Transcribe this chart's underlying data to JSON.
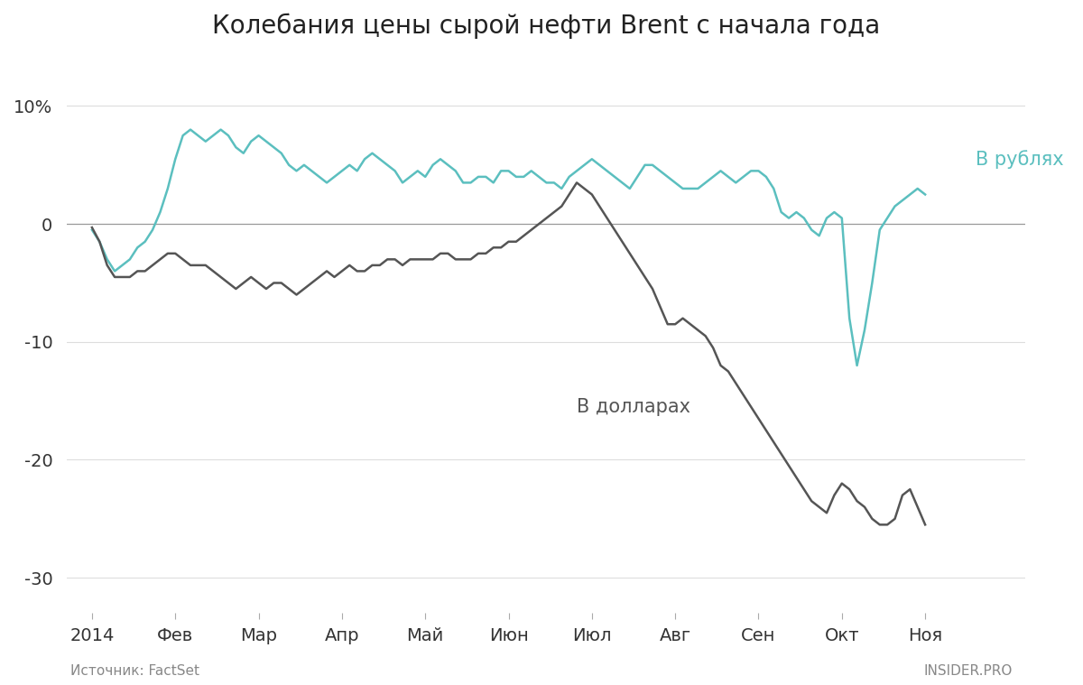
{
  "title": "Колебания цены сырой нефти Brent с начала года",
  "title_fontsize": 20,
  "xlabel_months": [
    "2014",
    "Фев",
    "Мар",
    "Апр",
    "Май",
    "Июн",
    "Июл",
    "Авг",
    "Сен",
    "Окт",
    "Ноя"
  ],
  "ylim": [
    -33,
    14
  ],
  "source_text": "Источник: FactSet",
  "brand_text": "INSIDER.PRO",
  "label_rubles": "В рублях",
  "label_dollars": "В долларах",
  "color_rubles": "#5bbfbf",
  "color_dollars": "#555555",
  "background_color": "#ffffff",
  "ruble_x": [
    0,
    1,
    2,
    3,
    4,
    5,
    6,
    7,
    8,
    9,
    10,
    11,
    12,
    13,
    14,
    15,
    16,
    17,
    18,
    19,
    20,
    21,
    22,
    23,
    24,
    25,
    26,
    27,
    28,
    29,
    30,
    31,
    32,
    33,
    34,
    35,
    36,
    37,
    38,
    39,
    40,
    41,
    42,
    43,
    44,
    45,
    46,
    47,
    48,
    49,
    50,
    51,
    52,
    53,
    54,
    55,
    56,
    57,
    58,
    59,
    60,
    61,
    62,
    63,
    64,
    65,
    66,
    67,
    68,
    69,
    70,
    71,
    72,
    73,
    74,
    75,
    76,
    77,
    78,
    79,
    80,
    81,
    82,
    83,
    84,
    85,
    86,
    87,
    88,
    89,
    90,
    91,
    92,
    93,
    94,
    95,
    96,
    97,
    98,
    99,
    100,
    101,
    102,
    103,
    104,
    105,
    106,
    107,
    108,
    109,
    110
  ],
  "ruble_y": [
    -0.5,
    -1.5,
    -3.0,
    -4.0,
    -3.5,
    -3.0,
    -2.0,
    -1.5,
    -0.5,
    1.0,
    3.0,
    5.5,
    7.5,
    8.0,
    7.5,
    7.0,
    7.5,
    8.0,
    7.5,
    6.5,
    6.0,
    7.0,
    7.5,
    7.0,
    6.5,
    6.0,
    5.0,
    4.5,
    5.0,
    4.5,
    4.0,
    3.5,
    4.0,
    4.5,
    5.0,
    4.5,
    5.5,
    6.0,
    5.5,
    5.0,
    4.5,
    3.5,
    4.0,
    4.5,
    4.0,
    5.0,
    5.5,
    5.0,
    4.5,
    3.5,
    3.5,
    4.0,
    4.0,
    3.5,
    4.5,
    4.5,
    4.0,
    4.0,
    4.5,
    4.0,
    3.5,
    3.5,
    3.0,
    4.0,
    4.5,
    5.0,
    5.5,
    5.0,
    4.5,
    4.0,
    3.5,
    3.0,
    4.0,
    5.0,
    5.0,
    4.5,
    4.0,
    3.5,
    3.0,
    3.0,
    3.0,
    3.5,
    4.0,
    4.5,
    4.0,
    3.5,
    4.0,
    4.5,
    4.5,
    4.0,
    3.0,
    1.0,
    0.5,
    1.0,
    0.5,
    -0.5,
    -1.0,
    0.5,
    1.0,
    0.5,
    -8.0,
    -12.0,
    -9.0,
    -5.0,
    -0.5,
    0.5,
    1.5,
    2.0,
    2.5,
    3.0,
    2.5
  ],
  "dollar_x": [
    0,
    1,
    2,
    3,
    4,
    5,
    6,
    7,
    8,
    9,
    10,
    11,
    12,
    13,
    14,
    15,
    16,
    17,
    18,
    19,
    20,
    21,
    22,
    23,
    24,
    25,
    26,
    27,
    28,
    29,
    30,
    31,
    32,
    33,
    34,
    35,
    36,
    37,
    38,
    39,
    40,
    41,
    42,
    43,
    44,
    45,
    46,
    47,
    48,
    49,
    50,
    51,
    52,
    53,
    54,
    55,
    56,
    57,
    58,
    59,
    60,
    61,
    62,
    63,
    64,
    65,
    66,
    67,
    68,
    69,
    70,
    71,
    72,
    73,
    74,
    75,
    76,
    77,
    78,
    79,
    80,
    81,
    82,
    83,
    84,
    85,
    86,
    87,
    88,
    89,
    90,
    91,
    92,
    93,
    94,
    95,
    96,
    97,
    98,
    99,
    100,
    101,
    102,
    103,
    104,
    105,
    106,
    107,
    108,
    109,
    110
  ],
  "dollar_y": [
    -0.3,
    -1.5,
    -3.5,
    -4.5,
    -4.5,
    -4.5,
    -4.0,
    -4.0,
    -3.5,
    -3.0,
    -2.5,
    -2.5,
    -3.0,
    -3.5,
    -3.5,
    -3.5,
    -4.0,
    -4.5,
    -5.0,
    -5.5,
    -5.0,
    -4.5,
    -5.0,
    -5.5,
    -5.0,
    -5.0,
    -5.5,
    -6.0,
    -5.5,
    -5.0,
    -4.5,
    -4.0,
    -4.5,
    -4.0,
    -3.5,
    -4.0,
    -4.0,
    -3.5,
    -3.5,
    -3.0,
    -3.0,
    -3.5,
    -3.0,
    -3.0,
    -3.0,
    -3.0,
    -2.5,
    -2.5,
    -3.0,
    -3.0,
    -3.0,
    -2.5,
    -2.5,
    -2.0,
    -2.0,
    -1.5,
    -1.5,
    -1.0,
    -0.5,
    0.0,
    0.5,
    1.0,
    1.5,
    2.5,
    3.5,
    3.0,
    2.5,
    1.5,
    0.5,
    -0.5,
    -1.5,
    -2.5,
    -3.5,
    -4.5,
    -5.5,
    -7.0,
    -8.5,
    -8.5,
    -8.0,
    -8.5,
    -9.0,
    -9.5,
    -10.5,
    -12.0,
    -12.5,
    -13.5,
    -14.5,
    -15.5,
    -16.5,
    -17.5,
    -18.5,
    -19.5,
    -20.5,
    -21.5,
    -22.5,
    -23.5,
    -24.0,
    -24.5,
    -23.0,
    -22.0,
    -22.5,
    -23.5,
    -24.0,
    -25.0,
    -25.5,
    -25.5,
    -25.0,
    -23.0,
    -22.5,
    -24.0,
    -25.5
  ]
}
